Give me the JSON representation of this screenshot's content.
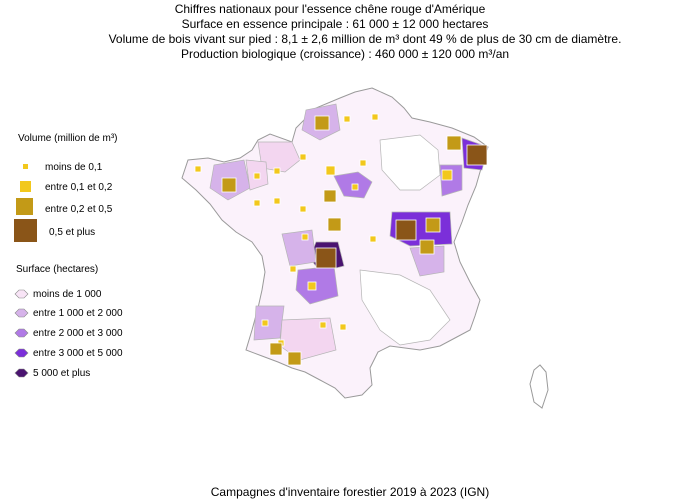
{
  "title_lines": [
    "Chiffres nationaux pour l'essence chêne rouge d'Amérique",
    "Surface en essence principale : 61 000 ± 12 000 hectares",
    "Volume de bois vivant sur pied : 8,1 ± 2,6 million de m³ dont 49 % de plus de 30 cm de diamètre.",
    "Production biologique (croissance) : 460 000 ± 120 000 m³/an"
  ],
  "volume_legend": {
    "title": "Volume (million de m³)",
    "items": [
      {
        "label": "moins de 0,1",
        "color": "#f2c81c"
      },
      {
        "label": "entre 0,1 et 0,2",
        "color": "#f2c81c"
      },
      {
        "label": "entre 0,2 et 0,5",
        "color": "#c39a17"
      },
      {
        "label": "0,5 et plus",
        "color": "#8a5518"
      }
    ]
  },
  "surface_legend": {
    "title": "Surface (hectares)",
    "items": [
      {
        "label": "moins de 1 000",
        "color": "#f8e4f6"
      },
      {
        "label": "entre 1 000 et 2 000",
        "color": "#d6b3ea"
      },
      {
        "label": "entre 2 000 et 3 000",
        "color": "#b07ae6"
      },
      {
        "label": "entre 3 000 et 5 000",
        "color": "#7b2fd9"
      },
      {
        "label": "5 000 et plus",
        "color": "#4a1470"
      }
    ]
  },
  "footer": "Campagnes d'inventaire forestier 2019 à 2023 (IGN)",
  "colors": {
    "outline": "#9a9a9a",
    "no_data": "#ffffff"
  }
}
